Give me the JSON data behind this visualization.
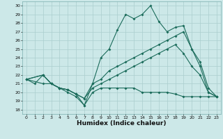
{
  "xlabel": "Humidex (Indice chaleur)",
  "bg_color": "#cce8e8",
  "grid_color": "#aacece",
  "line_color": "#1a6b5a",
  "xlim": [
    -0.5,
    23.5
  ],
  "ylim": [
    17.5,
    30.5
  ],
  "xticks": [
    0,
    1,
    2,
    3,
    4,
    5,
    6,
    7,
    8,
    9,
    10,
    11,
    12,
    13,
    14,
    15,
    16,
    17,
    18,
    19,
    20,
    21,
    22,
    23
  ],
  "yticks": [
    18,
    19,
    20,
    21,
    22,
    23,
    24,
    25,
    26,
    27,
    28,
    29,
    30
  ],
  "line1_x": [
    0,
    1,
    2,
    3,
    4,
    5,
    6,
    7,
    8,
    9,
    10,
    11,
    12,
    13,
    14,
    15,
    16,
    17,
    18,
    19,
    20,
    21,
    22,
    23
  ],
  "line1_y": [
    21.5,
    21.0,
    22.0,
    21.0,
    20.5,
    20.3,
    19.8,
    18.5,
    21.0,
    24.0,
    25.0,
    27.2,
    29.0,
    28.5,
    29.0,
    30.0,
    28.2,
    27.0,
    27.5,
    27.7,
    25.0,
    23.5,
    20.5,
    19.5
  ],
  "line2_x": [
    0,
    2,
    3,
    4,
    5,
    6,
    7,
    8,
    9,
    10,
    11,
    12,
    13,
    14,
    15,
    16,
    17,
    18,
    19,
    20,
    21,
    22,
    23
  ],
  "line2_y": [
    21.5,
    22.0,
    21.0,
    20.5,
    20.3,
    19.8,
    19.3,
    21.0,
    21.5,
    22.5,
    23.0,
    23.5,
    24.0,
    24.5,
    25.0,
    25.5,
    26.0,
    26.5,
    27.0,
    25.0,
    23.0,
    20.0,
    19.5
  ],
  "line3_x": [
    0,
    2,
    3,
    4,
    5,
    6,
    7,
    8,
    9,
    10,
    11,
    12,
    13,
    14,
    15,
    16,
    17,
    18,
    19,
    20,
    21,
    22,
    23
  ],
  "line3_y": [
    21.5,
    22.0,
    21.0,
    20.5,
    20.3,
    19.8,
    19.3,
    20.5,
    21.0,
    21.5,
    22.0,
    22.5,
    23.0,
    23.5,
    24.0,
    24.5,
    25.0,
    25.5,
    24.5,
    23.0,
    22.0,
    20.0,
    19.5
  ],
  "line4_x": [
    0,
    2,
    3,
    4,
    5,
    6,
    7,
    8,
    9,
    10,
    11,
    12,
    13,
    14,
    15,
    16,
    17,
    18,
    19,
    20,
    21,
    22,
    23
  ],
  "line4_y": [
    21.5,
    21.0,
    21.0,
    20.5,
    20.0,
    19.5,
    18.5,
    20.0,
    20.5,
    20.5,
    20.5,
    20.5,
    20.5,
    20.0,
    20.0,
    20.0,
    20.0,
    19.8,
    19.5,
    19.5,
    19.5,
    19.5,
    19.5
  ]
}
